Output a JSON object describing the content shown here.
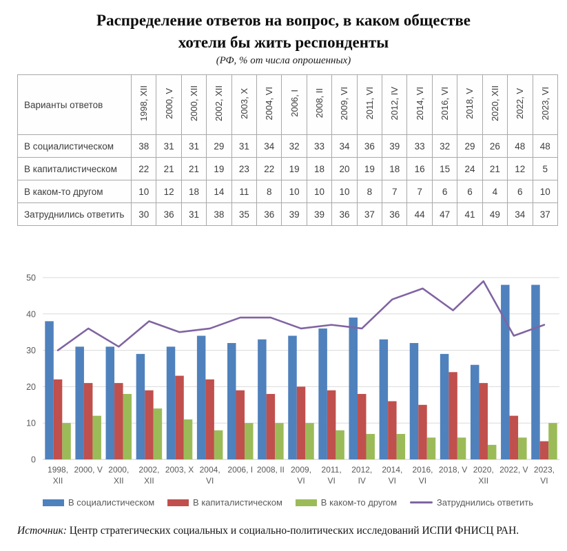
{
  "title": {
    "line1": "Распределение ответов на вопрос, в каком обществе",
    "line2": "хотели бы жить респонденты",
    "subtitle": "(РФ, % от числа опрошенных)"
  },
  "table": {
    "corner_label": "Варианты ответов",
    "columns": [
      "1998, XII",
      "2000, V",
      "2000, XII",
      "2002, XII",
      "2003, X",
      "2004, VI",
      "2006, I",
      "2008, II",
      "2009, VI",
      "2011, VI",
      "2012, IV",
      "2014, VI",
      "2016, VI",
      "2018, V",
      "2020, XII",
      "2022, V",
      "2023, VI"
    ],
    "rows": [
      {
        "label": "В социалистическом",
        "values": [
          38,
          31,
          31,
          29,
          31,
          34,
          32,
          33,
          34,
          36,
          39,
          33,
          32,
          29,
          26,
          48,
          48
        ]
      },
      {
        "label": "В капиталистическом",
        "values": [
          22,
          21,
          21,
          19,
          23,
          22,
          19,
          18,
          20,
          19,
          18,
          16,
          15,
          24,
          21,
          12,
          5
        ]
      },
      {
        "label": "В каком-то другом",
        "values": [
          10,
          12,
          18,
          14,
          11,
          8,
          10,
          10,
          10,
          8,
          7,
          7,
          6,
          6,
          4,
          6,
          10
        ]
      },
      {
        "label": "Затруднились ответить",
        "values": [
          30,
          36,
          31,
          38,
          35,
          36,
          39,
          39,
          36,
          37,
          36,
          44,
          47,
          41,
          49,
          34,
          37
        ]
      }
    ]
  },
  "chart_data": {
    "type": "bar",
    "subtype": "grouped-bars-with-line",
    "categories": [
      "1998, XII",
      "2000, V",
      "2000, XII",
      "2002, XII",
      "2003, X",
      "2004, VI",
      "2006, I",
      "2008, II",
      "2009, VI",
      "2011, VI",
      "2012, IV",
      "2014, VI",
      "2016, VI",
      "2018, V",
      "2020, XII",
      "2022, V",
      "2023, VI"
    ],
    "tick_lines": [
      [
        "1998,",
        "XII"
      ],
      [
        "2000, V"
      ],
      [
        "2000,",
        "XII"
      ],
      [
        "2002,",
        "XII"
      ],
      [
        "2003, X"
      ],
      [
        "2004,",
        "VI"
      ],
      [
        "2006, I"
      ],
      [
        "2008, II"
      ],
      [
        "2009,",
        "VI"
      ],
      [
        "2011,",
        "VI"
      ],
      [
        "2012,",
        "IV"
      ],
      [
        "2014,",
        "VI"
      ],
      [
        "2016,",
        "VI"
      ],
      [
        "2018, V"
      ],
      [
        "2020,",
        "XII"
      ],
      [
        "2022, V"
      ],
      [
        "2023,",
        "VI"
      ]
    ],
    "series": [
      {
        "name": "В социалистическом",
        "type": "bar",
        "color": "#4F81BD",
        "values": [
          38,
          31,
          31,
          29,
          31,
          34,
          32,
          33,
          34,
          36,
          39,
          33,
          32,
          29,
          26,
          48,
          48
        ]
      },
      {
        "name": "В капиталистическом",
        "type": "bar",
        "color": "#C0504D",
        "values": [
          22,
          21,
          21,
          19,
          23,
          22,
          19,
          18,
          20,
          19,
          18,
          16,
          15,
          24,
          21,
          12,
          5
        ]
      },
      {
        "name": "В каком-то другом",
        "type": "bar",
        "color": "#9BBB59",
        "values": [
          10,
          12,
          18,
          14,
          11,
          8,
          10,
          10,
          10,
          8,
          7,
          7,
          6,
          6,
          4,
          6,
          10
        ]
      },
      {
        "name": "Затруднились ответить",
        "type": "line",
        "color": "#8064A2",
        "values": [
          30,
          36,
          31,
          38,
          35,
          36,
          39,
          39,
          36,
          37,
          36,
          44,
          47,
          41,
          49,
          34,
          37
        ]
      }
    ],
    "title": "",
    "xlabel": "",
    "ylabel": "",
    "ylim": [
      0,
      50
    ],
    "yticks": [
      0,
      10,
      20,
      30,
      40,
      50
    ],
    "grid": true,
    "legend_position": "bottom"
  },
  "colors": {
    "gridline": "#D9D9D9",
    "baseline": "#C9C9C9",
    "axis_text": "#595959",
    "table_border": "#a8a8a8"
  },
  "source": {
    "prefix": "Источник:",
    "text": " Центр стратегических социальных и социально-политических исследований ИСПИ ФНИСЦ РАН."
  }
}
